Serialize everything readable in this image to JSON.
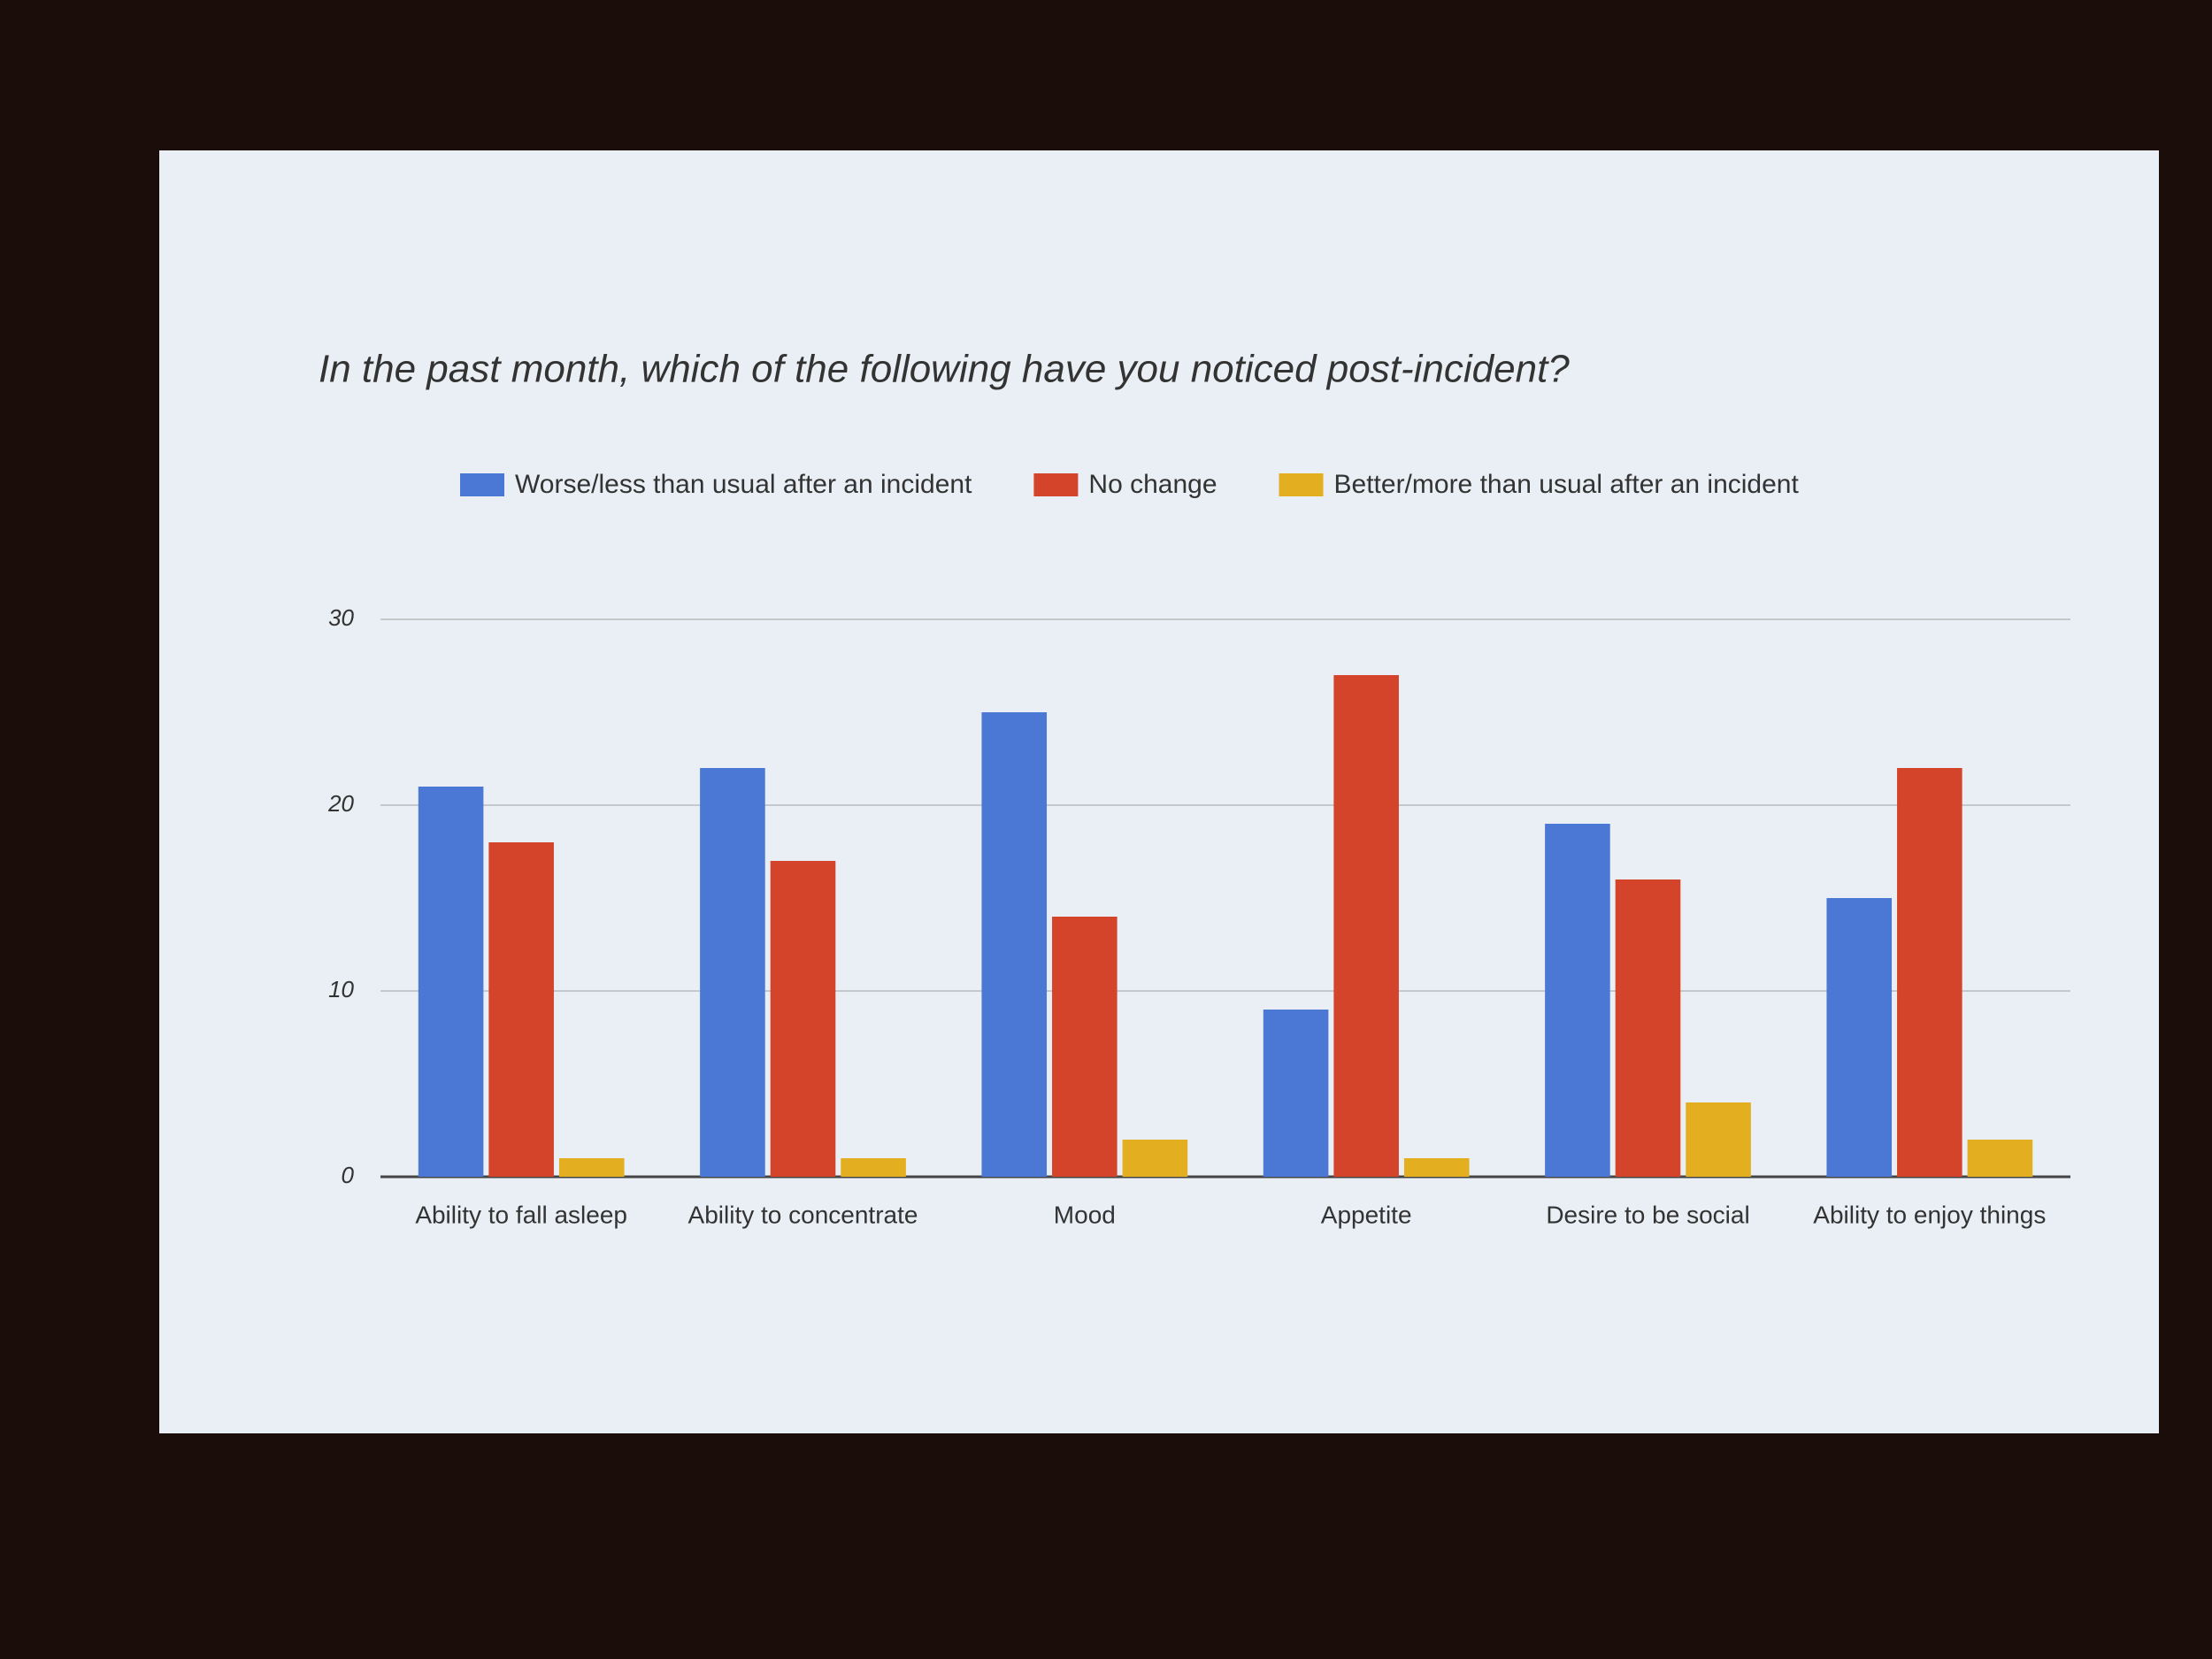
{
  "chart_data": {
    "type": "bar",
    "title": "In the past month, which of the following have you noticed post-incident?",
    "categories": [
      "Ability to fall asleep",
      "Ability to concentrate",
      "Mood",
      "Appetite",
      "Desire to be social",
      "Ability to enjoy things"
    ],
    "series": [
      {
        "name": "Worse/less than usual after an incident",
        "color": "#4a78d4",
        "values": [
          21,
          22,
          25,
          9,
          19,
          15
        ]
      },
      {
        "name": "No change",
        "color": "#d4442a",
        "values": [
          18,
          17,
          14,
          27,
          16,
          22
        ]
      },
      {
        "name": "Better/more than usual after an incident",
        "color": "#e3ae1f",
        "values": [
          1,
          1,
          2,
          1,
          4,
          2
        ]
      }
    ],
    "ylim": [
      0,
      30
    ],
    "yticks": [
      0,
      10,
      20,
      30
    ],
    "grid": true
  }
}
